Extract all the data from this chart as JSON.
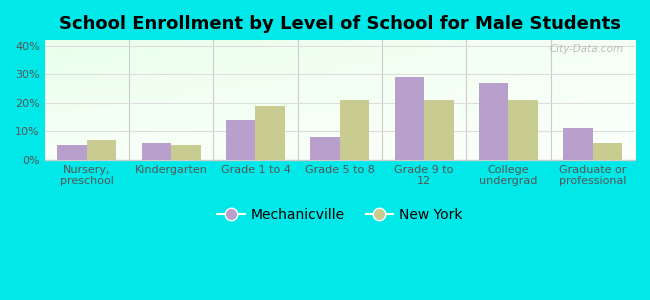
{
  "title": "School Enrollment by Level of School for Male Students",
  "categories": [
    "Nursery,\npreschool",
    "Kindergarten",
    "Grade 1 to 4",
    "Grade 5 to 8",
    "Grade 9 to\n12",
    "College\nundergrad",
    "Graduate or\nprofessional"
  ],
  "mechanicville": [
    5.0,
    6.0,
    14.0,
    8.0,
    29.0,
    27.0,
    11.0
  ],
  "new_york": [
    7.0,
    5.0,
    19.0,
    21.0,
    21.0,
    21.0,
    6.0
  ],
  "mechanicville_color": "#b89fcc",
  "new_york_color": "#c8cc90",
  "background_color": "#00e8e8",
  "ylim": [
    0,
    42
  ],
  "yticks": [
    0,
    10,
    20,
    30,
    40
  ],
  "ytick_labels": [
    "0%",
    "10%",
    "20%",
    "30%",
    "40%"
  ],
  "bar_width": 0.35,
  "title_fontsize": 13,
  "tick_fontsize": 8,
  "legend_fontsize": 10,
  "watermark_text": "City-Data.com",
  "grid_color": "#dddddd",
  "separator_color": "#cccccc"
}
